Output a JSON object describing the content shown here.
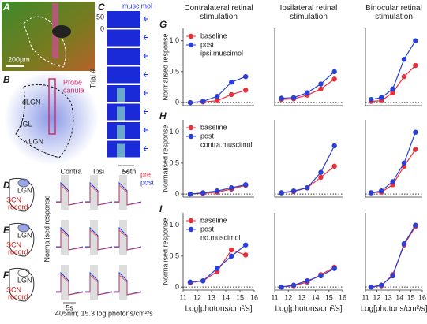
{
  "figure": {
    "panel_letters": [
      "A",
      "B",
      "C",
      "D",
      "E",
      "F",
      "G",
      "H",
      "I"
    ],
    "scale_bar": "200µm",
    "b_labels": {
      "probe": "Probe",
      "canula": "canula",
      "dlgn": "dLGN",
      "igl": "IGL",
      "vlgn": "vLGN"
    },
    "c_labels": {
      "drug": "muscimol",
      "ylabel": "Trial #",
      "tick_top": "50",
      "tick_bottom": "0",
      "time": "5s"
    },
    "def_labels": {
      "lgn": "LGN",
      "scn": "SCN",
      "record": "record",
      "contra": "Contra",
      "ipsi": "Ipsi",
      "both": "Both",
      "pre": "pre",
      "post": "post",
      "ylabel": "Normalised response",
      "time": "5s",
      "stimulus": "405nm; 15.3 log photons/cm²/s"
    }
  },
  "chart_data": [
    {
      "type": "line",
      "title": "Contralateral retinal stimulation",
      "ylabel": "Normalised response",
      "legend_note": "ipsi.muscimol",
      "xlim": [
        11,
        16
      ],
      "ylim": [
        -0.05,
        1.2
      ],
      "yticks": [
        0,
        0.5,
        {
          "value": 1,
          "label": "1.0"
        }
      ],
      "x": [
        11.5,
        12.4,
        13.4,
        14.4,
        15.4
      ],
      "series": [
        {
          "name": "baseline",
          "color": "#e8303a",
          "values": [
            0,
            0.01,
            0.03,
            0.13,
            0.2
          ]
        },
        {
          "name": "post",
          "color": "#2a3fd6",
          "values": [
            0,
            0.02,
            0.1,
            0.33,
            0.42
          ]
        }
      ]
    },
    {
      "type": "line",
      "title": "Ipsilateral retinal stimulation",
      "xlim": [
        11,
        16
      ],
      "ylim": [
        -0.05,
        1.2
      ],
      "x": [
        11.5,
        12.4,
        13.4,
        14.4,
        15.4
      ],
      "series": [
        {
          "name": "baseline",
          "color": "#e8303a",
          "values": [
            0.05,
            0.06,
            0.12,
            0.22,
            0.38
          ]
        },
        {
          "name": "post",
          "color": "#2a3fd6",
          "values": [
            0.07,
            0.08,
            0.16,
            0.3,
            0.5
          ]
        }
      ]
    },
    {
      "type": "line",
      "title": "Binocular retinal stimulation",
      "xlim": [
        11,
        16
      ],
      "ylim": [
        -0.05,
        1.2
      ],
      "x": [
        11.5,
        12.4,
        13.4,
        14.4,
        15.4
      ],
      "series": [
        {
          "name": "baseline",
          "color": "#e8303a",
          "values": [
            0.02,
            0.03,
            0.16,
            0.42,
            0.6
          ]
        },
        {
          "name": "post",
          "color": "#2a3fd6",
          "values": [
            0.05,
            0.08,
            0.22,
            0.7,
            1.0
          ]
        }
      ]
    },
    {
      "type": "line",
      "ylabel": "Normalised response",
      "legend_note": "contra.muscimol",
      "xlim": [
        11,
        16
      ],
      "ylim": [
        -0.05,
        1.2
      ],
      "yticks": [
        0,
        0.5,
        {
          "value": 1,
          "label": "1.0"
        }
      ],
      "x": [
        11.5,
        12.4,
        13.4,
        14.4,
        15.4
      ],
      "series": [
        {
          "name": "baseline",
          "color": "#e8303a",
          "values": [
            0,
            0.01,
            0.03,
            0.08,
            0.14
          ]
        },
        {
          "name": "post",
          "color": "#2a3fd6",
          "values": [
            0,
            0.02,
            0.05,
            0.1,
            0.15
          ]
        }
      ]
    },
    {
      "type": "line",
      "xlim": [
        11,
        16
      ],
      "ylim": [
        -0.05,
        1.2
      ],
      "x": [
        11.5,
        12.4,
        13.4,
        14.4,
        15.4
      ],
      "series": [
        {
          "name": "baseline",
          "color": "#e8303a",
          "values": [
            0.02,
            0.04,
            0.1,
            0.27,
            0.45
          ]
        },
        {
          "name": "post",
          "color": "#2a3fd6",
          "values": [
            0.02,
            0.05,
            0.1,
            0.35,
            0.78
          ]
        }
      ]
    },
    {
      "type": "line",
      "xlim": [
        11,
        16
      ],
      "ylim": [
        -0.05,
        1.2
      ],
      "x": [
        11.5,
        12.4,
        13.4,
        14.4,
        15.4
      ],
      "series": [
        {
          "name": "baseline",
          "color": "#e8303a",
          "values": [
            0.02,
            0.03,
            0.15,
            0.45,
            0.72
          ]
        },
        {
          "name": "post",
          "color": "#2a3fd6",
          "values": [
            0.02,
            0.05,
            0.2,
            0.5,
            1.0
          ]
        }
      ]
    },
    {
      "type": "line",
      "ylabel": "Normalised response",
      "xlabel": "Log[photons/cm²/s]",
      "legend_note": "no.muscimol",
      "xlim": [
        11,
        16
      ],
      "ylim": [
        -0.05,
        1.2
      ],
      "yticks": [
        0,
        0.5,
        {
          "value": 1,
          "label": "1.0"
        }
      ],
      "xticks": [
        11,
        12,
        13,
        14,
        15,
        16
      ],
      "x": [
        11.5,
        12.4,
        13.4,
        14.4,
        15.4
      ],
      "series": [
        {
          "name": "baseline",
          "color": "#e8303a",
          "values": [
            0.07,
            0.1,
            0.25,
            0.6,
            0.52
          ]
        },
        {
          "name": "post",
          "color": "#2a3fd6",
          "values": [
            0.08,
            0.1,
            0.3,
            0.5,
            0.68
          ]
        }
      ]
    },
    {
      "type": "line",
      "xlabel": "Log[photons/cm²/s]",
      "xlim": [
        11,
        16
      ],
      "ylim": [
        -0.05,
        1.2
      ],
      "xticks": [
        11,
        12,
        13,
        14,
        15,
        16
      ],
      "x": [
        11.5,
        12.4,
        13.4,
        14.4,
        15.4
      ],
      "series": [
        {
          "name": "baseline",
          "color": "#e8303a",
          "values": [
            0,
            0.02,
            0.08,
            0.2,
            0.32
          ]
        },
        {
          "name": "post",
          "color": "#2a3fd6",
          "values": [
            0,
            0.03,
            0.1,
            0.18,
            0.3
          ]
        }
      ]
    },
    {
      "type": "line",
      "xlabel": "Log[photons/cm²/s]",
      "xlim": [
        11,
        16
      ],
      "ylim": [
        -0.05,
        1.2
      ],
      "xticks": [
        11,
        12,
        13,
        14,
        15,
        16
      ],
      "x": [
        11.5,
        12.4,
        13.4,
        14.4,
        15.4
      ],
      "series": [
        {
          "name": "baseline",
          "color": "#e8303a",
          "values": [
            0,
            0.02,
            0.2,
            0.68,
            0.98
          ]
        },
        {
          "name": "post",
          "color": "#2a3fd6",
          "values": [
            0,
            0.03,
            0.18,
            0.7,
            1.0
          ]
        }
      ]
    }
  ]
}
